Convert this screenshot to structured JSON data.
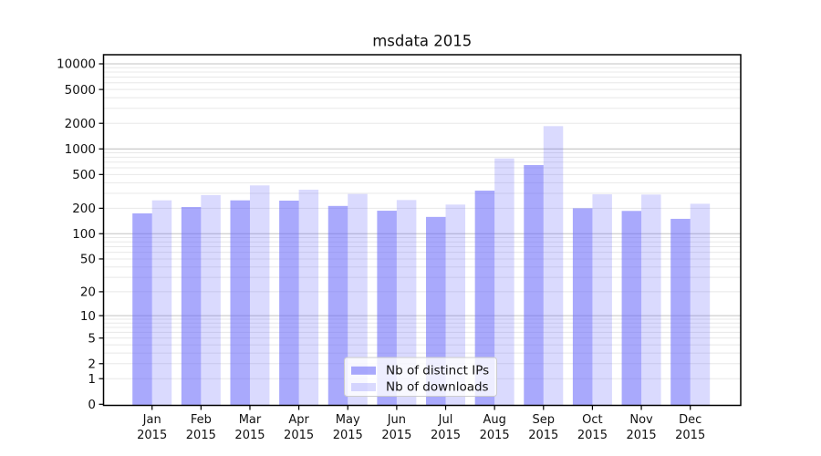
{
  "chart_data": {
    "type": "bar",
    "title": "msdata 2015",
    "yscale": "symlog",
    "grid": true,
    "legend_position": "inside lower center",
    "categories": [
      "Jan",
      "Feb",
      "Mar",
      "Apr",
      "May",
      "Jun",
      "Jul",
      "Aug",
      "Sep",
      "Oct",
      "Nov",
      "Dec"
    ],
    "category_year": "2015",
    "series": [
      {
        "name": "Nb of distinct IPs",
        "color": "rgba(102,102,250,0.56)",
        "values": [
          174,
          207,
          248,
          246,
          213,
          187,
          158,
          323,
          646,
          200,
          186,
          150
        ]
      },
      {
        "name": "Nb of downloads",
        "color": "rgba(102,102,250,0.24)",
        "values": [
          248,
          286,
          372,
          331,
          295,
          250,
          221,
          773,
          1852,
          292,
          290,
          226
        ]
      }
    ],
    "ytick_values": [
      0,
      1,
      2,
      5,
      10,
      20,
      50,
      100,
      200,
      500,
      1000,
      2000,
      5000,
      10000
    ],
    "ylim": [
      0,
      12800
    ]
  },
  "colors": {
    "bar_distinct_ips": "rgba(102,102,250,0.56)",
    "bar_downloads": "rgba(102,102,250,0.24)",
    "grid_major": "#c3c3c3",
    "grid_minor": "#e8e8e8",
    "axis": "#000000",
    "text": "#111111",
    "legend_bg": "rgba(255,255,255,0.8)",
    "legend_border": "#cccccc",
    "background": "#ffffff"
  }
}
